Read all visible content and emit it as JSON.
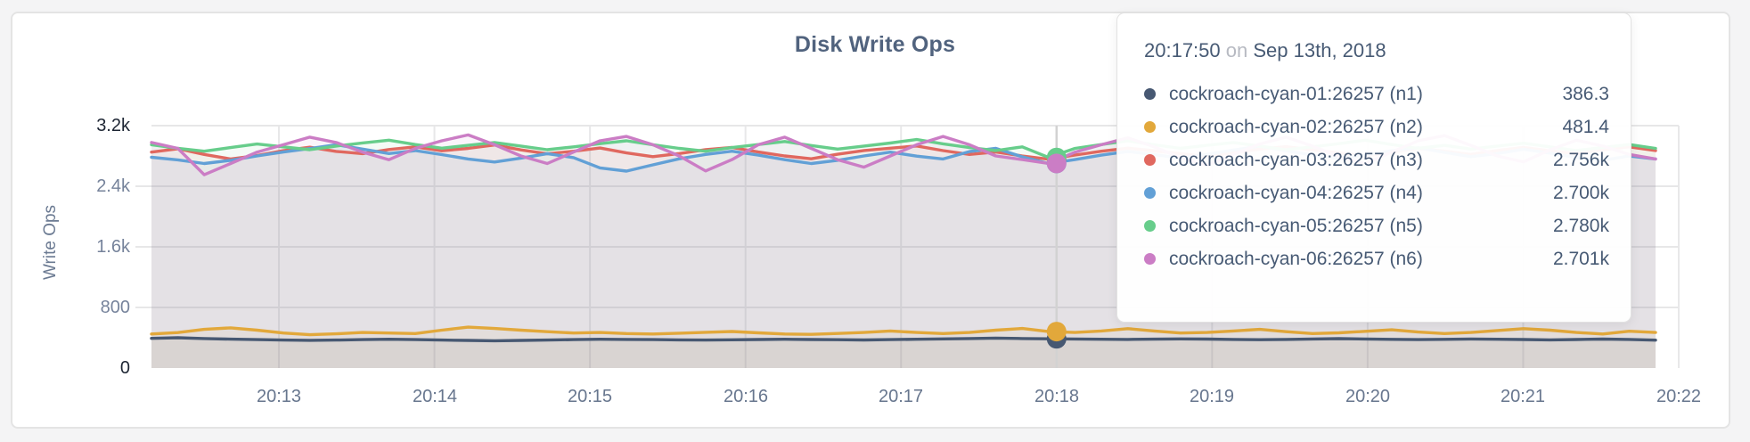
{
  "panel": {
    "title": "Disk Write Ops"
  },
  "y_axis": {
    "label": "Write Ops",
    "ticks": [
      {
        "label": "3.2k",
        "emphasis": true
      },
      {
        "label": "2.4k",
        "emphasis": false
      },
      {
        "label": "1.6k",
        "emphasis": false
      },
      {
        "label": "800",
        "emphasis": false
      },
      {
        "label": "0",
        "emphasis": true
      }
    ]
  },
  "x_axis": {
    "labels": [
      "20:13",
      "20:14",
      "20:15",
      "20:16",
      "20:17",
      "20:18",
      "20:19",
      "20:20",
      "20:21",
      "20:22"
    ]
  },
  "tooltip": {
    "time": "20:17:50",
    "separator": "on",
    "date": "Sep 13th, 2018",
    "rows": [
      {
        "label": "cockroach-cyan-01:26257 (n1)",
        "value": "386.3",
        "color": "#475872"
      },
      {
        "label": "cockroach-cyan-02:26257 (n2)",
        "value": "481.4",
        "color": "#e2a83b"
      },
      {
        "label": "cockroach-cyan-03:26257 (n3)",
        "value": "2.756k",
        "color": "#e0685f"
      },
      {
        "label": "cockroach-cyan-04:26257 (n4)",
        "value": "2.700k",
        "color": "#62a0d6"
      },
      {
        "label": "cockroach-cyan-05:26257 (n5)",
        "value": "2.780k",
        "color": "#67cd8b"
      },
      {
        "label": "cockroach-cyan-06:26257 (n6)",
        "value": "2.701k",
        "color": "#cb7dc5"
      }
    ]
  },
  "chart_data": {
    "type": "line",
    "title": "Disk Write Ops",
    "ylabel": "Write Ops",
    "ylim": [
      0,
      3200
    ],
    "y_ticks": [
      0,
      800,
      1600,
      2400,
      3200
    ],
    "x_tick_labels": [
      "20:13",
      "20:14",
      "20:15",
      "20:16",
      "20:17",
      "20:18",
      "20:19",
      "20:20",
      "20:21",
      "20:22"
    ],
    "x_interval_seconds": 10,
    "grid": true,
    "legend_position": "tooltip-only",
    "hover": {
      "index": 34,
      "time": "20:17:50",
      "date": "Sep 13th, 2018"
    },
    "series": [
      {
        "name": "cockroach-cyan-01:26257 (n1)",
        "color": "#475872",
        "hover_value": "386.3",
        "hover_value_num": 386.3,
        "values": [
          392,
          400,
          390,
          381,
          375,
          370,
          366,
          370,
          375,
          380,
          375,
          370,
          365,
          360,
          365,
          370,
          375,
          380,
          378,
          375,
          372,
          370,
          373,
          376,
          380,
          377,
          374,
          371,
          375,
          380,
          385,
          390,
          395,
          390,
          386.3,
          383,
          380,
          378,
          381,
          385,
          382,
          378,
          374,
          378,
          383,
          388,
          384,
          379,
          375,
          379,
          384,
          380,
          376,
          372,
          377,
          382,
          378,
          368
        ]
      },
      {
        "name": "cockroach-cyan-02:26257 (n2)",
        "color": "#e2a83b",
        "hover_value": "481.4",
        "hover_value_num": 481.4,
        "values": [
          450,
          468,
          510,
          530,
          500,
          462,
          440,
          452,
          470,
          462,
          455,
          500,
          540,
          522,
          500,
          480,
          462,
          470,
          455,
          450,
          460,
          472,
          482,
          465,
          450,
          445,
          456,
          470,
          490,
          470,
          455,
          470,
          500,
          522,
          481.4,
          470,
          490,
          520,
          490,
          462,
          470,
          490,
          510,
          480,
          455,
          465,
          485,
          505,
          475,
          455,
          470,
          495,
          520,
          500,
          470,
          450,
          486,
          470
        ]
      },
      {
        "name": "cockroach-cyan-03:26257 (n3)",
        "color": "#e0685f",
        "hover_value": "2.756k",
        "hover_value_num": 2756,
        "values": [
          2850,
          2895,
          2820,
          2760,
          2805,
          2870,
          2915,
          2860,
          2830,
          2885,
          2920,
          2868,
          2900,
          2945,
          2880,
          2828,
          2862,
          2905,
          2840,
          2790,
          2832,
          2884,
          2912,
          2852,
          2800,
          2762,
          2822,
          2872,
          2902,
          2932,
          2870,
          2820,
          2852,
          2800,
          2756,
          2812,
          2862,
          2902,
          2868,
          2830,
          2790,
          2842,
          2890,
          2922,
          2880,
          2840,
          2800,
          2852,
          2900,
          2862,
          2820,
          2872,
          2912,
          2868,
          2830,
          2882,
          2920,
          2870
        ]
      },
      {
        "name": "cockroach-cyan-04:26257 (n4)",
        "color": "#62a0d6",
        "hover_value": "2.700k",
        "hover_value_num": 2700,
        "values": [
          2782,
          2748,
          2700,
          2742,
          2800,
          2852,
          2898,
          2948,
          2890,
          2832,
          2870,
          2818,
          2760,
          2720,
          2772,
          2830,
          2778,
          2642,
          2600,
          2682,
          2762,
          2820,
          2862,
          2810,
          2750,
          2700,
          2742,
          2800,
          2850,
          2798,
          2760,
          2858,
          2900,
          2788,
          2700,
          2752,
          2810,
          2860,
          2818,
          2770,
          2822,
          2878,
          2930,
          2868,
          2810,
          2762,
          2812,
          2868,
          2908,
          2848,
          2790,
          2832,
          2888,
          2838,
          2780,
          2742,
          2800,
          2760
        ]
      },
      {
        "name": "cockroach-cyan-05:26257 (n5)",
        "color": "#67cd8b",
        "hover_value": "2.780k",
        "hover_value_num": 2780,
        "values": [
          2948,
          2900,
          2862,
          2910,
          2958,
          2920,
          2882,
          2930,
          2972,
          3008,
          2950,
          2902,
          2940,
          2978,
          2930,
          2882,
          2920,
          2962,
          3000,
          2948,
          2900,
          2862,
          2910,
          2950,
          2990,
          2938,
          2890,
          2930,
          2970,
          3018,
          2960,
          2910,
          2870,
          2920,
          2780,
          2900,
          2950,
          3000,
          2948,
          2900,
          2940,
          2978,
          2930,
          2882,
          2920,
          2962,
          3008,
          2950,
          2900,
          2940,
          2890,
          2930,
          2968,
          2920,
          2870,
          2912,
          2950,
          2900
        ]
      },
      {
        "name": "cockroach-cyan-06:26257 (n6)",
        "color": "#cb7dc5",
        "hover_value": "2.701k",
        "hover_value_num": 2701,
        "values": [
          2978,
          2900,
          2552,
          2700,
          2850,
          2948,
          3048,
          2978,
          2850,
          2750,
          2900,
          3000,
          3078,
          2948,
          2800,
          2700,
          2852,
          3000,
          3058,
          2948,
          2800,
          2602,
          2752,
          2948,
          3048,
          2900,
          2750,
          2652,
          2800,
          2948,
          3058,
          2948,
          2800,
          2752,
          2701,
          2850,
          2948,
          3040,
          2920,
          2778,
          2680,
          2820,
          2958,
          3048,
          2930,
          2790,
          2700,
          2850,
          3000,
          3068,
          2940,
          2800,
          2722,
          2880,
          3008,
          2930,
          2820,
          2760
        ]
      }
    ]
  }
}
